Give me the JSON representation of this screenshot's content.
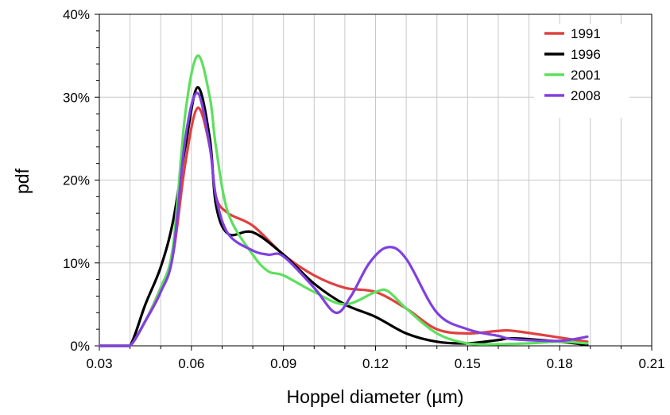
{
  "chart_data": {
    "type": "line",
    "title": "",
    "xlabel": "Hoppel diameter  (µm)",
    "ylabel": "pdf",
    "xlim": [
      0.03,
      0.21
    ],
    "ylim": [
      0,
      40
    ],
    "x_ticks": [
      0.03,
      0.06,
      0.09,
      0.12,
      0.15,
      0.18,
      0.21
    ],
    "x_tick_labels": [
      "0.03",
      "0.06",
      "0.09",
      "0.12",
      "0.15",
      "0.18",
      "0.21"
    ],
    "y_ticks": [
      0,
      10,
      20,
      30,
      40
    ],
    "y_tick_labels": [
      "0%",
      "10%",
      "20%",
      "30%",
      "40%"
    ],
    "grid": true,
    "legend_position": "top-right",
    "series": [
      {
        "name": "1991",
        "color": "#e04040",
        "points": [
          [
            0.03,
            0
          ],
          [
            0.036,
            0
          ],
          [
            0.04,
            0
          ],
          [
            0.045,
            3
          ],
          [
            0.05,
            7
          ],
          [
            0.054,
            11
          ],
          [
            0.058,
            22
          ],
          [
            0.062,
            28.7
          ],
          [
            0.066,
            24
          ],
          [
            0.068,
            18
          ],
          [
            0.072,
            16
          ],
          [
            0.08,
            14.5
          ],
          [
            0.09,
            11
          ],
          [
            0.1,
            8.5
          ],
          [
            0.11,
            7
          ],
          [
            0.12,
            6.5
          ],
          [
            0.13,
            4.5
          ],
          [
            0.14,
            2
          ],
          [
            0.15,
            1.5
          ],
          [
            0.16,
            1.8
          ],
          [
            0.165,
            1.8
          ],
          [
            0.18,
            1
          ],
          [
            0.189,
            0.5
          ]
        ]
      },
      {
        "name": "1996",
        "color": "#000000",
        "points": [
          [
            0.03,
            0
          ],
          [
            0.036,
            0
          ],
          [
            0.04,
            0
          ],
          [
            0.045,
            5
          ],
          [
            0.05,
            9.5
          ],
          [
            0.054,
            15
          ],
          [
            0.058,
            24
          ],
          [
            0.062,
            31.2
          ],
          [
            0.066,
            25
          ],
          [
            0.068,
            17
          ],
          [
            0.072,
            13.5
          ],
          [
            0.08,
            13.7
          ],
          [
            0.09,
            11
          ],
          [
            0.1,
            7.5
          ],
          [
            0.11,
            5
          ],
          [
            0.12,
            3.5
          ],
          [
            0.13,
            1.5
          ],
          [
            0.14,
            0.5
          ],
          [
            0.15,
            0.3
          ],
          [
            0.16,
            0.7
          ],
          [
            0.165,
            0.9
          ],
          [
            0.18,
            0.5
          ],
          [
            0.189,
            0.1
          ]
        ]
      },
      {
        "name": "2001",
        "color": "#5de05d",
        "points": [
          [
            0.03,
            0
          ],
          [
            0.036,
            0
          ],
          [
            0.04,
            0
          ],
          [
            0.045,
            3
          ],
          [
            0.05,
            7
          ],
          [
            0.054,
            12
          ],
          [
            0.058,
            28
          ],
          [
            0.062,
            35
          ],
          [
            0.066,
            30
          ],
          [
            0.068,
            24
          ],
          [
            0.072,
            16
          ],
          [
            0.08,
            11
          ],
          [
            0.085,
            9
          ],
          [
            0.09,
            8.5
          ],
          [
            0.1,
            6.5
          ],
          [
            0.11,
            5
          ],
          [
            0.12,
            6.5
          ],
          [
            0.124,
            6.6
          ],
          [
            0.13,
            4.5
          ],
          [
            0.14,
            1.5
          ],
          [
            0.15,
            0.3
          ],
          [
            0.16,
            0.2
          ],
          [
            0.17,
            0.3
          ],
          [
            0.18,
            0.5
          ],
          [
            0.189,
            0.3
          ]
        ]
      },
      {
        "name": "2008",
        "color": "#8040e0",
        "points": [
          [
            0.03,
            0
          ],
          [
            0.036,
            0
          ],
          [
            0.04,
            0
          ],
          [
            0.045,
            3
          ],
          [
            0.05,
            6.5
          ],
          [
            0.054,
            11
          ],
          [
            0.058,
            25
          ],
          [
            0.062,
            30.5
          ],
          [
            0.066,
            24
          ],
          [
            0.068,
            18
          ],
          [
            0.072,
            13.5
          ],
          [
            0.08,
            11.5
          ],
          [
            0.085,
            11
          ],
          [
            0.09,
            10.8
          ],
          [
            0.1,
            7
          ],
          [
            0.107,
            4
          ],
          [
            0.112,
            6
          ],
          [
            0.118,
            10
          ],
          [
            0.124,
            11.9
          ],
          [
            0.13,
            10.5
          ],
          [
            0.14,
            4
          ],
          [
            0.15,
            2
          ],
          [
            0.16,
            1.2
          ],
          [
            0.165,
            0.8
          ],
          [
            0.18,
            0.6
          ],
          [
            0.189,
            1.1
          ]
        ]
      }
    ]
  }
}
